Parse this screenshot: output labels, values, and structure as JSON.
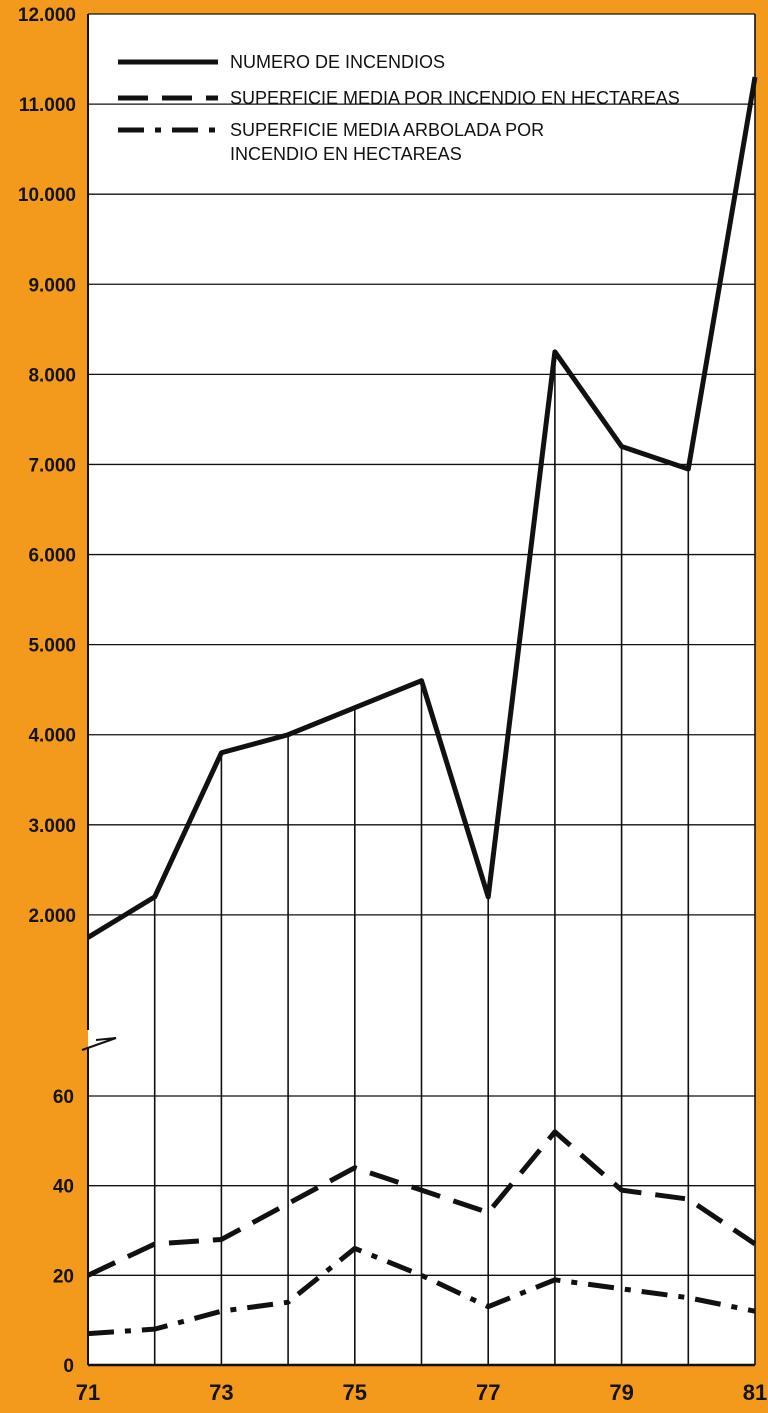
{
  "chart_data": {
    "type": "line",
    "broken_y_axis": true,
    "x": [
      71,
      72,
      73,
      74,
      75,
      76,
      77,
      78,
      79,
      80,
      81
    ],
    "x_tick_labels": [
      "71",
      "73",
      "75",
      "77",
      "79",
      "81"
    ],
    "upper_panel": {
      "ylim": [
        1000,
        12000
      ],
      "y_tick_labels": [
        "2.000",
        "3.000",
        "4.000",
        "5.000",
        "6.000",
        "7.000",
        "8.000",
        "9.000",
        "10.000",
        "11.000",
        "12.000"
      ],
      "series": [
        {
          "name": "NUMERO DE INCENDIOS",
          "style": "solid",
          "values": [
            1750,
            2200,
            3800,
            4000,
            4300,
            4600,
            2200,
            8250,
            7200,
            6950,
            11300
          ]
        }
      ]
    },
    "lower_panel": {
      "ylim": [
        0,
        60
      ],
      "y_tick_labels": [
        "0",
        "20",
        "40",
        "60"
      ],
      "series": [
        {
          "name": "SUPERFICIE MEDIA POR INCENDIO EN HECTAREAS",
          "style": "dashed",
          "values": [
            20,
            27,
            28,
            36,
            44,
            39,
            34,
            52,
            39,
            37,
            27
          ]
        },
        {
          "name": "SUPERFICIE MEDIA ARBOLADA POR INCENDIO EN HECTAREAS",
          "style": "dashdot",
          "values": [
            7,
            8,
            12,
            14,
            26,
            20,
            13,
            19,
            17,
            15,
            12
          ]
        }
      ]
    },
    "legend": {
      "placement": "top",
      "entries": [
        {
          "lines": [
            "NUMERO DE INCENDIOS"
          ],
          "style": "solid"
        },
        {
          "lines": [
            "SUPERFICIE MEDIA POR INCENDIO EN HECTAREAS"
          ],
          "style": "dashed"
        },
        {
          "lines": [
            "SUPERFICIE MEDIA ARBOLADA POR",
            "INCENDIO EN HECTAREAS"
          ],
          "style": "dashdot"
        }
      ]
    },
    "grid": true,
    "colors": {
      "background": "#f39a1c",
      "plot_area": "#ffffff",
      "ink": "#111111"
    }
  }
}
